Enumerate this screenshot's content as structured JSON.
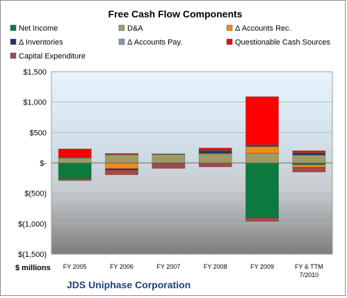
{
  "chart_data": {
    "type": "bar",
    "title": "Free Cash Flow Components",
    "units_label": "$ millions",
    "company": "JDS Uniphase Corporation",
    "ylim": [
      -1500,
      1500
    ],
    "yticks": [
      1500,
      1000,
      500,
      0,
      -500,
      -1000,
      -1500
    ],
    "ytick_labels": [
      "$1,500",
      "$1,000",
      "$500",
      "$-",
      "$(500)",
      "$(1,000)",
      "$(1,500)"
    ],
    "categories": [
      "FY 2005",
      "FY 2006",
      "FY 2007",
      "FY 2008",
      "FY 2009",
      "FY & TTM 7/2010"
    ],
    "legend_position": "top",
    "series": [
      {
        "name": "Net Income",
        "color": "#0b7a3e",
        "values": [
          -260,
          -5,
          -10,
          -5,
          -900,
          -30
        ]
      },
      {
        "name": "D&A",
        "color": "#a09a64",
        "values": [
          80,
          130,
          140,
          150,
          160,
          130
        ]
      },
      {
        "name": "Δ Accounts Rec.",
        "color": "#f08a1c",
        "values": [
          10,
          -90,
          0,
          10,
          110,
          -40
        ]
      },
      {
        "name": "Δ Inventories",
        "color": "#203864",
        "values": [
          5,
          -20,
          5,
          40,
          20,
          30
        ]
      },
      {
        "name": "Δ Accounts Pay.",
        "color": "#7f95bb",
        "values": [
          5,
          10,
          5,
          10,
          10,
          10
        ]
      },
      {
        "name": "Questionable Cash Sources",
        "color": "#ff0000",
        "values": [
          130,
          15,
          0,
          35,
          790,
          30
        ]
      },
      {
        "name": "Capital Expenditure",
        "color": "#a34a4a",
        "values": [
          -30,
          -80,
          -80,
          -60,
          -60,
          -80
        ]
      }
    ]
  }
}
